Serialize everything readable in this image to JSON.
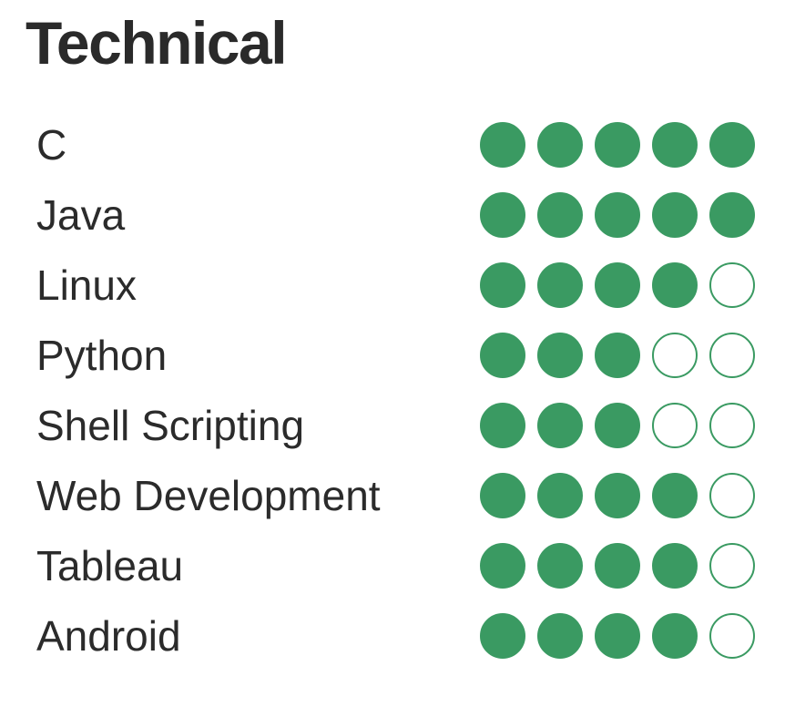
{
  "section": {
    "title": "Technical"
  },
  "rating_max": 5,
  "colors": {
    "dot_fill": "#3a9a62",
    "text": "#2b2b2b"
  },
  "skills": [
    {
      "name": "C",
      "rating": 5
    },
    {
      "name": "Java",
      "rating": 5
    },
    {
      "name": "Linux",
      "rating": 4
    },
    {
      "name": "Python",
      "rating": 3
    },
    {
      "name": "Shell Scripting",
      "rating": 3
    },
    {
      "name": "Web Development",
      "rating": 4
    },
    {
      "name": "Tableau",
      "rating": 4
    },
    {
      "name": "Android",
      "rating": 4
    }
  ]
}
